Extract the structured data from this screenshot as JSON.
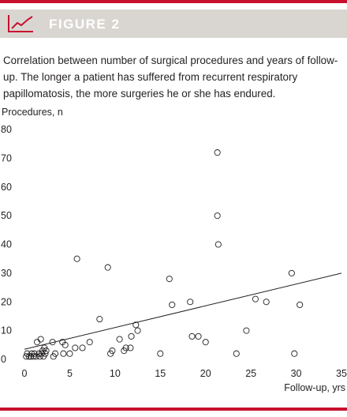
{
  "header": {
    "title": "FIGURE 2",
    "icon": "line-chart-icon",
    "accent_color": "#c8102e",
    "band_color": "#d9d6d1"
  },
  "caption": "Correlation between number of surgical procedures and years of follow-up. The longer a patient has suffered from recurrent respiratory papillomatosis, the more surgeries he or she has endured.",
  "chart_data": {
    "type": "scatter",
    "title": "",
    "xlabel": "Follow-up, yrs",
    "ylabel": "Procedures, n",
    "xlim": [
      0,
      35
    ],
    "ylim": [
      0,
      80
    ],
    "x_ticks": [
      0,
      5,
      10,
      15,
      20,
      25,
      30,
      35
    ],
    "y_ticks": [
      0,
      10,
      20,
      30,
      40,
      50,
      60,
      70,
      80
    ],
    "grid": false,
    "marker": "open-circle",
    "series": [
      {
        "points": [
          [
            0.2,
            1
          ],
          [
            0.3,
            2
          ],
          [
            0.5,
            1
          ],
          [
            0.7,
            1
          ],
          [
            0.8,
            2
          ],
          [
            1.0,
            1
          ],
          [
            1.1,
            2
          ],
          [
            1.3,
            1
          ],
          [
            1.4,
            6
          ],
          [
            1.6,
            2
          ],
          [
            1.7,
            1
          ],
          [
            1.8,
            7
          ],
          [
            1.9,
            2
          ],
          [
            2.0,
            3
          ],
          [
            2.1,
            1
          ],
          [
            2.2,
            4
          ],
          [
            2.3,
            2
          ],
          [
            2.4,
            3
          ],
          [
            3.1,
            6
          ],
          [
            3.2,
            1
          ],
          [
            3.4,
            2
          ],
          [
            4.2,
            6
          ],
          [
            4.3,
            2
          ],
          [
            4.5,
            5
          ],
          [
            5.0,
            2
          ],
          [
            5.6,
            4
          ],
          [
            5.8,
            35
          ],
          [
            6.4,
            4
          ],
          [
            7.2,
            6
          ],
          [
            8.3,
            14
          ],
          [
            9.2,
            32
          ],
          [
            9.5,
            2
          ],
          [
            9.7,
            3
          ],
          [
            10.5,
            7
          ],
          [
            11.0,
            3
          ],
          [
            11.2,
            4
          ],
          [
            11.7,
            4
          ],
          [
            11.8,
            8
          ],
          [
            12.3,
            12
          ],
          [
            12.5,
            10
          ],
          [
            15.0,
            2
          ],
          [
            16.0,
            28
          ],
          [
            16.3,
            19
          ],
          [
            18.3,
            20
          ],
          [
            18.5,
            8
          ],
          [
            19.2,
            8
          ],
          [
            20.0,
            6
          ],
          [
            21.3,
            72
          ],
          [
            21.3,
            50
          ],
          [
            21.4,
            40
          ],
          [
            23.4,
            2
          ],
          [
            24.5,
            10
          ],
          [
            25.5,
            21
          ],
          [
            26.7,
            20
          ],
          [
            29.5,
            30
          ],
          [
            29.8,
            2
          ],
          [
            30.4,
            19
          ]
        ]
      }
    ],
    "trendline": {
      "x": [
        0,
        35
      ],
      "y": [
        3.5,
        30
      ]
    }
  }
}
